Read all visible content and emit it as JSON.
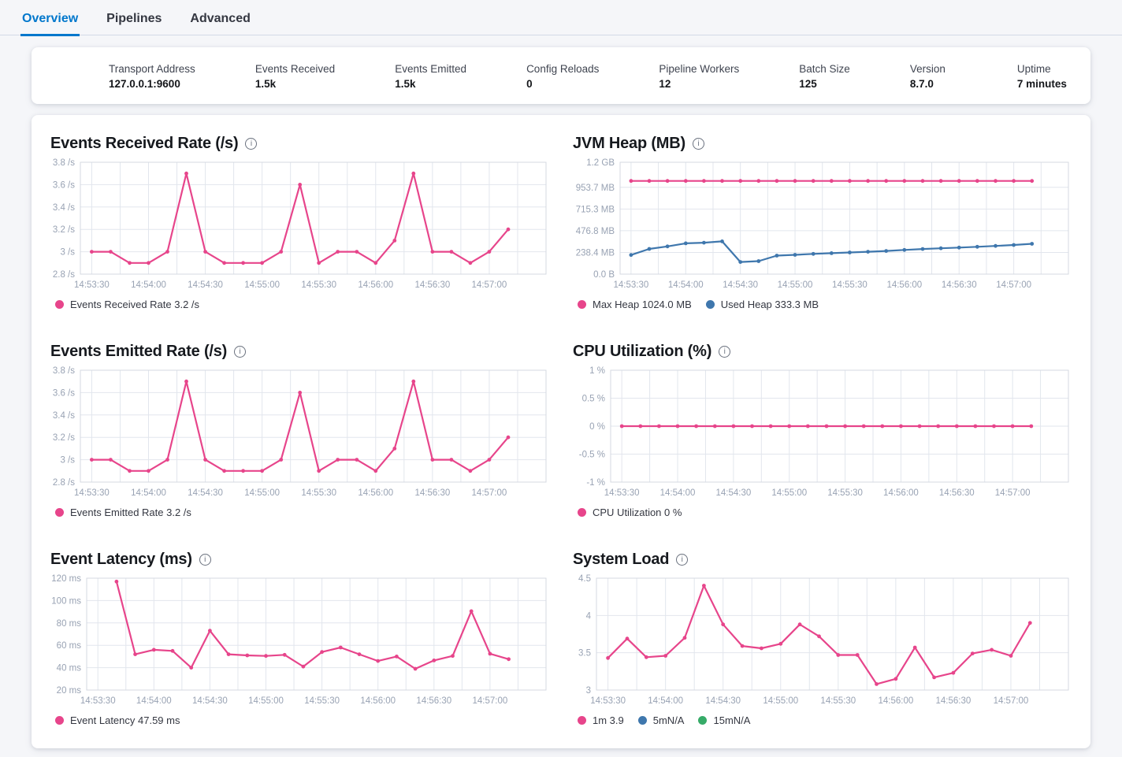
{
  "tabs": {
    "items": [
      {
        "label": "Overview",
        "active": true
      },
      {
        "label": "Pipelines",
        "active": false
      },
      {
        "label": "Advanced",
        "active": false
      }
    ]
  },
  "summary_bar": {
    "items": [
      {
        "label": "Transport Address",
        "value": "127.0.0.1:9600"
      },
      {
        "label": "Events Received",
        "value": "1.5k"
      },
      {
        "label": "Events Emitted",
        "value": "1.5k"
      },
      {
        "label": "Config Reloads",
        "value": "0"
      },
      {
        "label": "Pipeline Workers",
        "value": "12"
      },
      {
        "label": "Batch Size",
        "value": "125"
      },
      {
        "label": "Version",
        "value": "8.7.0"
      },
      {
        "label": "Uptime",
        "value": "7 minutes"
      }
    ]
  },
  "colors": {
    "accent_pink": "#e7458b",
    "accent_blue": "#3f77ad",
    "accent_green": "#36ab68",
    "tab_active_blue": "#0077cc",
    "axis_label": "#98a2b3",
    "grid_line": "#e2e6ed",
    "plot_border": "#d4d9e1"
  },
  "icons": {
    "info_glyph": "i"
  },
  "chart_data": [
    {
      "type": "line",
      "title": "Events Received Rate (/s)",
      "ylim": [
        2.8,
        3.8
      ],
      "y_ticks": [
        {
          "value": 3.8,
          "label": "3.8 /s"
        },
        {
          "value": 3.6,
          "label": "3.6 /s"
        },
        {
          "value": 3.4,
          "label": "3.4 /s"
        },
        {
          "value": 3.2,
          "label": "3.2 /s"
        },
        {
          "value": 3.0,
          "label": "3 /s"
        },
        {
          "value": 2.8,
          "label": "2.8 /s"
        }
      ],
      "x_domain": [
        "14:53:24",
        "14:57:30"
      ],
      "x_gridlines": {
        "start": "14:53:30",
        "end": "14:57:15",
        "interval_s": 15
      },
      "x_labels": [
        "14:53:30",
        "14:54:00",
        "14:54:30",
        "14:55:00",
        "14:55:30",
        "14:56:00",
        "14:56:30",
        "14:57:00"
      ],
      "series": [
        {
          "name": "Events Received Rate",
          "color": "#e7458b",
          "start": "14:53:30",
          "interval_s": 10,
          "values": [
            3,
            3,
            2.9,
            2.9,
            3,
            3.7,
            3,
            2.9,
            2.9,
            2.9,
            3,
            3.6,
            2.9,
            3,
            3,
            2.9,
            3.1,
            3.7,
            3,
            3,
            2.9,
            3,
            3.2
          ]
        }
      ],
      "legend": [
        {
          "color": "#e7458b",
          "label": "Events Received Rate 3.2 /s"
        }
      ]
    },
    {
      "type": "line",
      "title": "JVM Heap (MB)",
      "ylim": [
        0,
        1228.8
      ],
      "y_ticks": [
        {
          "value": 1228.8,
          "label": "1.2 GB"
        },
        {
          "value": 953.7,
          "label": "953.7 MB"
        },
        {
          "value": 715.3,
          "label": "715.3 MB"
        },
        {
          "value": 476.8,
          "label": "476.8 MB"
        },
        {
          "value": 238.4,
          "label": "238.4 MB"
        },
        {
          "value": 0,
          "label": "0.0 B"
        }
      ],
      "x_domain": [
        "14:53:24",
        "14:57:30"
      ],
      "x_gridlines": {
        "start": "14:53:30",
        "end": "14:57:15",
        "interval_s": 15
      },
      "x_labels": [
        "14:53:30",
        "14:54:00",
        "14:54:30",
        "14:55:00",
        "14:55:30",
        "14:56:00",
        "14:56:30",
        "14:57:00"
      ],
      "series": [
        {
          "name": "Max Heap",
          "color": "#e7458b",
          "start": "14:53:30",
          "interval_s": 10,
          "values": [
            1024,
            1024,
            1024,
            1024,
            1024,
            1024,
            1024,
            1024,
            1024,
            1024,
            1024,
            1024,
            1024,
            1024,
            1024,
            1024,
            1024,
            1024,
            1024,
            1024,
            1024,
            1024,
            1024
          ]
        },
        {
          "name": "Used Heap",
          "color": "#3f77ad",
          "start": "14:53:30",
          "interval_s": 10,
          "values": [
            210,
            277,
            305,
            338,
            345,
            360,
            133,
            143,
            203,
            212,
            222,
            230,
            238,
            246,
            254,
            266,
            276,
            284,
            292,
            300,
            310,
            320,
            333
          ]
        }
      ],
      "legend": [
        {
          "color": "#e7458b",
          "label": "Max Heap 1024.0 MB"
        },
        {
          "color": "#3f77ad",
          "label": "Used Heap 333.3 MB"
        }
      ]
    },
    {
      "type": "line",
      "title": "Events Emitted Rate (/s)",
      "ylim": [
        2.8,
        3.8
      ],
      "y_ticks": [
        {
          "value": 3.8,
          "label": "3.8 /s"
        },
        {
          "value": 3.6,
          "label": "3.6 /s"
        },
        {
          "value": 3.4,
          "label": "3.4 /s"
        },
        {
          "value": 3.2,
          "label": "3.2 /s"
        },
        {
          "value": 3.0,
          "label": "3 /s"
        },
        {
          "value": 2.8,
          "label": "2.8 /s"
        }
      ],
      "x_domain": [
        "14:53:24",
        "14:57:30"
      ],
      "x_gridlines": {
        "start": "14:53:30",
        "end": "14:57:15",
        "interval_s": 15
      },
      "x_labels": [
        "14:53:30",
        "14:54:00",
        "14:54:30",
        "14:55:00",
        "14:55:30",
        "14:56:00",
        "14:56:30",
        "14:57:00"
      ],
      "series": [
        {
          "name": "Events Emitted Rate",
          "color": "#e7458b",
          "start": "14:53:30",
          "interval_s": 10,
          "values": [
            3,
            3,
            2.9,
            2.9,
            3,
            3.7,
            3,
            2.9,
            2.9,
            2.9,
            3,
            3.6,
            2.9,
            3,
            3,
            2.9,
            3.1,
            3.7,
            3,
            3,
            2.9,
            3,
            3.2
          ]
        }
      ],
      "legend": [
        {
          "color": "#e7458b",
          "label": "Events Emitted Rate 3.2 /s"
        }
      ]
    },
    {
      "type": "line",
      "title": "CPU Utilization (%)",
      "ylim": [
        -1,
        1
      ],
      "y_ticks": [
        {
          "value": 1,
          "label": "1 %"
        },
        {
          "value": 0.5,
          "label": "0.5 %"
        },
        {
          "value": 0,
          "label": "0 %"
        },
        {
          "value": -0.5,
          "label": "-0.5 %"
        },
        {
          "value": -1,
          "label": "-1 %"
        }
      ],
      "x_domain": [
        "14:53:24",
        "14:57:30"
      ],
      "x_gridlines": {
        "start": "14:53:30",
        "end": "14:57:15",
        "interval_s": 15
      },
      "x_labels": [
        "14:53:30",
        "14:54:00",
        "14:54:30",
        "14:55:00",
        "14:55:30",
        "14:56:00",
        "14:56:30",
        "14:57:00"
      ],
      "series": [
        {
          "name": "CPU Utilization",
          "color": "#e7458b",
          "start": "14:53:30",
          "interval_s": 10,
          "values": [
            0,
            0,
            0,
            0,
            0,
            0,
            0,
            0,
            0,
            0,
            0,
            0,
            0,
            0,
            0,
            0,
            0,
            0,
            0,
            0,
            0,
            0,
            0
          ]
        }
      ],
      "legend": [
        {
          "color": "#e7458b",
          "label": "CPU Utilization 0 %"
        }
      ]
    },
    {
      "type": "line",
      "title": "Event Latency (ms)",
      "ylim": [
        20,
        120
      ],
      "y_ticks": [
        {
          "value": 120,
          "label": "120 ms"
        },
        {
          "value": 100,
          "label": "100 ms"
        },
        {
          "value": 80,
          "label": "80 ms"
        },
        {
          "value": 60,
          "label": "60 ms"
        },
        {
          "value": 40,
          "label": "40 ms"
        },
        {
          "value": 20,
          "label": "20 ms"
        }
      ],
      "x_domain": [
        "14:53:24",
        "14:57:30"
      ],
      "x_gridlines": {
        "start": "14:53:30",
        "end": "14:57:15",
        "interval_s": 15
      },
      "x_labels": [
        "14:53:30",
        "14:54:00",
        "14:54:30",
        "14:55:00",
        "14:55:30",
        "14:56:00",
        "14:56:30",
        "14:57:00"
      ],
      "series": [
        {
          "name": "Event Latency",
          "color": "#e7458b",
          "start": "14:53:40",
          "interval_s": 10,
          "values": [
            117,
            52,
            56,
            55,
            40,
            73,
            52,
            51,
            50.5,
            51.5,
            41,
            54,
            58,
            52,
            46,
            50,
            39,
            46.5,
            50.5,
            90.5,
            52.5,
            47.59
          ]
        }
      ],
      "legend": [
        {
          "color": "#e7458b",
          "label": "Event Latency 47.59 ms"
        }
      ]
    },
    {
      "type": "line",
      "title": "System Load",
      "ylim": [
        3,
        4.5
      ],
      "y_ticks": [
        {
          "value": 4.5,
          "label": "4.5"
        },
        {
          "value": 4,
          "label": "4"
        },
        {
          "value": 3.5,
          "label": "3.5"
        },
        {
          "value": 3,
          "label": "3"
        }
      ],
      "x_domain": [
        "14:53:24",
        "14:57:30"
      ],
      "x_gridlines": {
        "start": "14:53:30",
        "end": "14:57:15",
        "interval_s": 15
      },
      "x_labels": [
        "14:53:30",
        "14:54:00",
        "14:54:30",
        "14:55:00",
        "14:55:30",
        "14:56:00",
        "14:56:30",
        "14:57:00"
      ],
      "series": [
        {
          "name": "1m",
          "color": "#e7458b",
          "start": "14:53:30",
          "interval_s": 10,
          "values": [
            3.43,
            3.69,
            3.44,
            3.46,
            3.7,
            4.4,
            3.88,
            3.59,
            3.56,
            3.62,
            3.88,
            3.72,
            3.47,
            3.47,
            3.08,
            3.15,
            3.57,
            3.17,
            3.23,
            3.49,
            3.54,
            3.46,
            3.9
          ]
        }
      ],
      "legend": [
        {
          "color": "#e7458b",
          "label": "1m 3.9"
        },
        {
          "color": "#3f77ad",
          "label": "5mN/A"
        },
        {
          "color": "#36ab68",
          "label": "15mN/A"
        }
      ]
    }
  ]
}
